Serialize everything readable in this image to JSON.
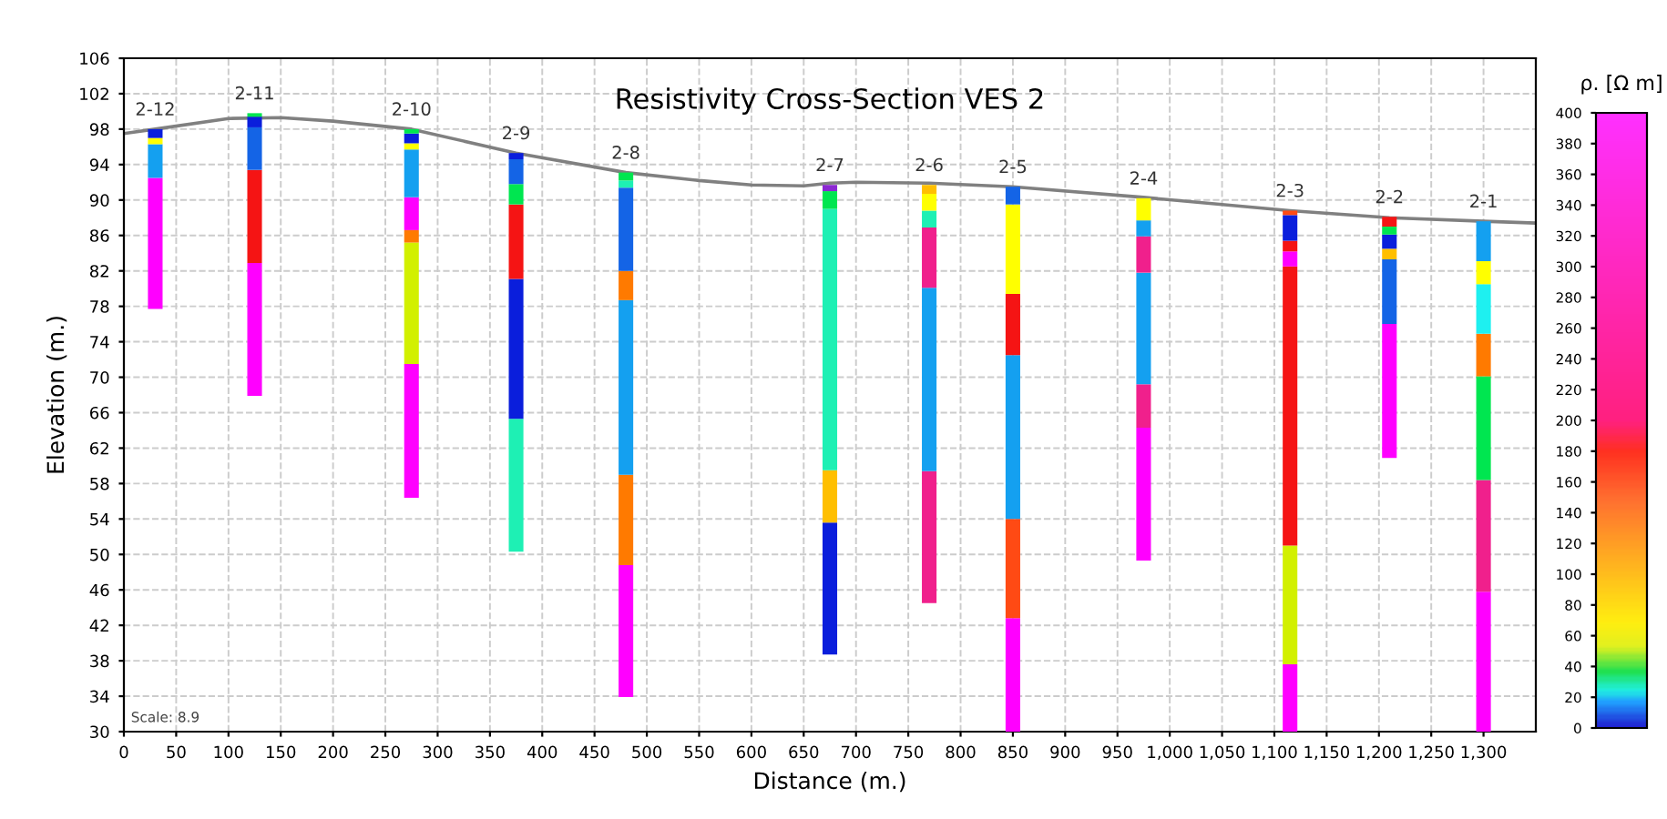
{
  "chart_data": {
    "type": "bar",
    "title": "Resistivity Cross-Section VES 2",
    "xlabel": "Distance (m.)",
    "ylabel": "Elevation (m.)",
    "clabel": "ρ. [Ω m]",
    "x": [
      30,
      125,
      275,
      375,
      480,
      675,
      770,
      850,
      975,
      1115,
      1210,
      1300
    ],
    "series": [
      {
        "base": [
          77.7,
          67.9,
          56.4,
          50.3,
          33.9,
          38.7,
          44.5,
          30,
          49.3,
          30,
          60.9,
          30
        ],
        "values": [
          14.8,
          15.0,
          15.1,
          15.0,
          14.9,
          14.9,
          14.9,
          12.8,
          15.0,
          7.6,
          15.1,
          15.8
        ],
        "colors": [
          "#ff00ff",
          "#ff00ff",
          "#ff00ff",
          "#1ef0b4",
          "#ff00ff",
          "#0a1edc",
          "#f0208c",
          "#ff00ff",
          "#ff00ff",
          "#ff00ff",
          "#ff00ff",
          "#ff00ff"
        ]
      },
      {
        "base": [
          92.5,
          82.9,
          71.5,
          65.3,
          48.8,
          53.6,
          59.4,
          42.8,
          64.3,
          37.6,
          76.0,
          45.8
        ],
        "values": [
          3.8,
          10.5,
          13.7,
          15.8,
          10.2,
          5.9,
          20.7,
          11.2,
          4.9,
          13.4,
          7.3,
          12.6
        ],
        "colors": [
          "#14a0f0",
          "#f51414",
          "#d2f000",
          "#0a1edc",
          "#ff7a00",
          "#ffbf00",
          "#14a0f0",
          "#ff4a14",
          "#f0208c",
          "#d2f000",
          "#1464e6",
          "#f0208c"
        ]
      },
      {
        "base": [
          96.3,
          93.4,
          85.2,
          81.1,
          59.0,
          59.5,
          80.1,
          54.0,
          69.2,
          51.0,
          83.3,
          58.4
        ],
        "values": [
          0.7,
          4.8,
          1.4,
          8.4,
          19.7,
          29.5,
          6.8,
          18.5,
          12.6,
          31.5,
          1.2,
          11.7
        ],
        "colors": [
          "#ffff00",
          "#1464e6",
          "#ff7a00",
          "#f51414",
          "#14a0f0",
          "#1ef0b4",
          "#f0208c",
          "#14a0f0",
          "#14a0f0",
          "#f51414",
          "#ffbf00",
          "#00e650"
        ]
      },
      {
        "base": [
          97.0,
          98.2,
          86.6,
          89.5,
          78.7,
          89.0,
          86.9,
          72.5,
          81.8,
          82.5,
          84.5,
          70.1
        ],
        "values": [
          1.0,
          1.2,
          3.7,
          2.3,
          3.3,
          2.0,
          1.9,
          6.9,
          4.1,
          1.7,
          1.6,
          4.8
        ],
        "colors": [
          "#0a1edc",
          "#0a1edc",
          "#ff00ff",
          "#00e650",
          "#ff7a00",
          "#00e650",
          "#1ef0b4",
          "#f51414",
          "#f0208c",
          "#ff00ff",
          "#0a1edc",
          "#ff7a00"
        ]
      },
      {
        "base": [
          null,
          99.4,
          90.3,
          91.8,
          82.0,
          91.0,
          88.8,
          79.4,
          85.9,
          84.2,
          86.1,
          74.9
        ],
        "values": [
          null,
          0.4,
          5.4,
          2.8,
          9.4,
          0.7,
          1.9,
          10.1,
          1.8,
          1.2,
          0.9,
          5.6
        ],
        "colors": [
          null,
          "#00e650",
          "#14a0f0",
          "#1464e6",
          "#1464e6",
          "#8c28d2",
          "#ffff00",
          "#ffff00",
          "#14a0f0",
          "#f51414",
          "#00e650",
          "#1ef0f0"
        ]
      },
      {
        "base": [
          null,
          null,
          95.7,
          94.6,
          91.4,
          null,
          90.7,
          89.5,
          87.7,
          85.4,
          87.0,
          80.5
        ],
        "values": [
          null,
          null,
          0.7,
          0.7,
          0.8,
          null,
          1.0,
          2.0,
          2.5,
          2.9,
          1.1,
          2.6
        ],
        "colors": [
          null,
          null,
          "#ffff00",
          "#0a1edc",
          "#1ef0b4",
          null,
          "#ffbf00",
          "#1464e6",
          "#ffff00",
          "#0a1edc",
          "#f51414",
          "#ffff00"
        ]
      },
      {
        "base": [
          null,
          null,
          96.4,
          null,
          92.2,
          null,
          null,
          null,
          null,
          88.3,
          null,
          83.1
        ],
        "values": [
          null,
          null,
          1.1,
          null,
          0.9,
          null,
          null,
          null,
          null,
          0.5,
          null,
          4.5
        ],
        "colors": [
          null,
          null,
          "#0a1edc",
          null,
          "#00e650",
          null,
          null,
          null,
          null,
          "#ff4a14",
          null,
          "#14a0f0"
        ]
      },
      {
        "base": [
          null,
          null,
          97.5,
          null,
          null,
          null,
          null,
          null,
          null,
          null,
          null,
          null
        ],
        "values": [
          null,
          null,
          0.5,
          null,
          null,
          null,
          null,
          null,
          null,
          null,
          null,
          null
        ],
        "colors": [
          null,
          null,
          "#00e650",
          null,
          null,
          null,
          null,
          null,
          null,
          null,
          null,
          null
        ]
      },
      {
        "type": "line",
        "color": "#808080",
        "x": [
          0,
          30,
          100,
          150,
          200,
          275,
          375,
          480,
          550,
          600,
          650,
          675,
          700,
          770,
          850,
          975,
          1115,
          1210,
          1300,
          1350
        ],
        "values": [
          97.5,
          98.0,
          99.2,
          99.3,
          98.9,
          98.0,
          95.3,
          93.1,
          92.2,
          91.7,
          91.6,
          91.9,
          92.0,
          91.9,
          91.5,
          90.3,
          88.8,
          88.0,
          87.6,
          87.4
        ]
      }
    ],
    "annotations": [
      {
        "text": "2-12",
        "x": 30,
        "y": 98.0
      },
      {
        "text": "2-11",
        "x": 125,
        "y": 99.8
      },
      {
        "text": "2-10",
        "x": 275,
        "y": 98.0
      },
      {
        "text": "2-9",
        "x": 375,
        "y": 95.3
      },
      {
        "text": "2-8",
        "x": 480,
        "y": 93.1
      },
      {
        "text": "2-7",
        "x": 675,
        "y": 91.7
      },
      {
        "text": "2-6",
        "x": 770,
        "y": 91.7
      },
      {
        "text": "2-5",
        "x": 850,
        "y": 91.5
      },
      {
        "text": "2-4",
        "x": 975,
        "y": 90.2
      },
      {
        "text": "2-3",
        "x": 1115,
        "y": 88.8
      },
      {
        "text": "2-2",
        "x": 1210,
        "y": 88.1
      },
      {
        "text": "2-1",
        "x": 1300,
        "y": 87.6
      },
      "Scale: 8.9"
    ],
    "xlim": [
      0,
      1350
    ],
    "xticks": [
      0,
      50,
      100,
      150,
      200,
      250,
      300,
      350,
      400,
      450,
      500,
      550,
      600,
      650,
      700,
      750,
      800,
      850,
      900,
      950,
      {
        "value": 1000,
        "label": "1,000"
      },
      {
        "value": 1050,
        "label": "1,050"
      },
      {
        "value": 1100,
        "label": "1,100"
      },
      {
        "value": 1150,
        "label": "1,150"
      },
      {
        "value": 1200,
        "label": "1,200"
      },
      {
        "value": 1250,
        "label": "1,250"
      },
      {
        "value": 1300,
        "label": "1,300"
      }
    ],
    "ylim": [
      30,
      106
    ],
    "yticks": [
      30,
      34,
      38,
      42,
      46,
      50,
      54,
      58,
      62,
      66,
      70,
      74,
      78,
      82,
      86,
      90,
      94,
      98,
      102,
      106
    ],
    "clim": [
      0,
      400
    ],
    "cticks": [
      0,
      20,
      40,
      60,
      80,
      100,
      120,
      140,
      160,
      180,
      200,
      220,
      240,
      260,
      280,
      300,
      320,
      340,
      360,
      380,
      400
    ],
    "grid": true,
    "marker": "none"
  }
}
